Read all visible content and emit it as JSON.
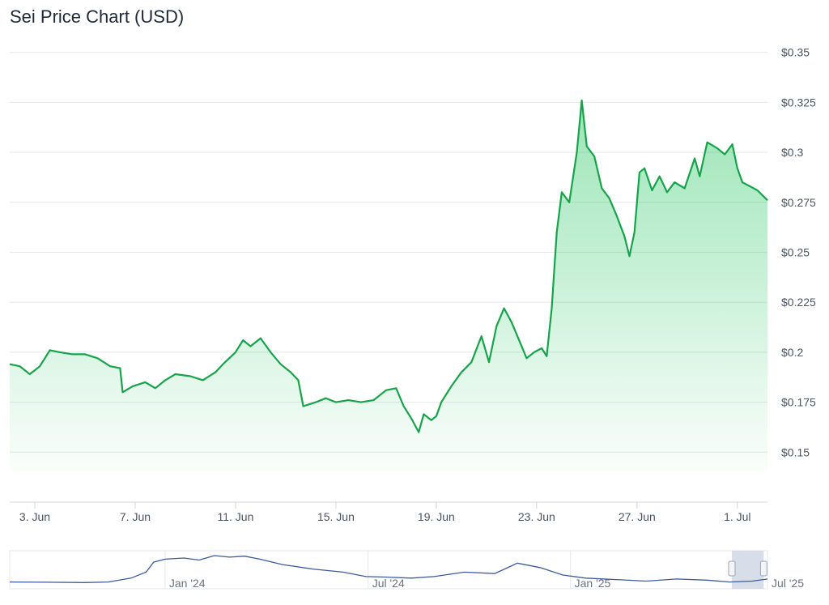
{
  "chart_title": "Sei Price Chart (USD)",
  "colors": {
    "line": "#16a34a",
    "fill_top": "#22c55e",
    "grid": "#e5e7eb",
    "navigator_line": "#3b5b9a",
    "navigator_mask": "#c8d0e0"
  },
  "chart_data": {
    "type": "area",
    "title": "Sei Price Chart (USD)",
    "currency": "USD",
    "xlabel": "",
    "ylabel": "",
    "y_axis_position": "right",
    "ylim": [
      0.125,
      0.36
    ],
    "grid": true,
    "y_ticks": [
      {
        "value": 0.15,
        "label": "$0.15"
      },
      {
        "value": 0.175,
        "label": "$0.175"
      },
      {
        "value": 0.2,
        "label": "$0.2"
      },
      {
        "value": 0.225,
        "label": "$0.225"
      },
      {
        "value": 0.25,
        "label": "$0.25"
      },
      {
        "value": 0.275,
        "label": "$0.275"
      },
      {
        "value": 0.3,
        "label": "$0.3"
      },
      {
        "value": 0.325,
        "label": "$0.325"
      },
      {
        "value": 0.35,
        "label": "$0.35"
      }
    ],
    "x_ticks": [
      {
        "day": 3,
        "label": "3. Jun"
      },
      {
        "day": 7,
        "label": "7. Jun"
      },
      {
        "day": 11,
        "label": "11. Jun"
      },
      {
        "day": 15,
        "label": "15. Jun"
      },
      {
        "day": 19,
        "label": "19. Jun"
      },
      {
        "day": 23,
        "label": "23. Jun"
      },
      {
        "day": 27,
        "label": "27. Jun"
      },
      {
        "day": 31,
        "label": "1. Jul"
      }
    ],
    "xlim": [
      2.0,
      32.2
    ],
    "series": [
      {
        "points": [
          [
            2.0,
            0.194
          ],
          [
            2.4,
            0.193
          ],
          [
            2.8,
            0.189
          ],
          [
            3.2,
            0.193
          ],
          [
            3.6,
            0.201
          ],
          [
            4.0,
            0.2
          ],
          [
            4.5,
            0.199
          ],
          [
            5.0,
            0.199
          ],
          [
            5.5,
            0.197
          ],
          [
            6.0,
            0.193
          ],
          [
            6.4,
            0.192
          ],
          [
            6.5,
            0.18
          ],
          [
            6.9,
            0.183
          ],
          [
            7.4,
            0.185
          ],
          [
            7.8,
            0.182
          ],
          [
            8.2,
            0.186
          ],
          [
            8.6,
            0.189
          ],
          [
            9.2,
            0.188
          ],
          [
            9.7,
            0.186
          ],
          [
            10.2,
            0.19
          ],
          [
            10.5,
            0.194
          ],
          [
            11.0,
            0.2
          ],
          [
            11.3,
            0.206
          ],
          [
            11.6,
            0.203
          ],
          [
            12.0,
            0.207
          ],
          [
            12.4,
            0.2
          ],
          [
            12.8,
            0.194
          ],
          [
            13.2,
            0.19
          ],
          [
            13.5,
            0.186
          ],
          [
            13.7,
            0.173
          ],
          [
            14.2,
            0.175
          ],
          [
            14.6,
            0.177
          ],
          [
            15.0,
            0.175
          ],
          [
            15.5,
            0.176
          ],
          [
            16.0,
            0.175
          ],
          [
            16.5,
            0.176
          ],
          [
            17.0,
            0.181
          ],
          [
            17.4,
            0.182
          ],
          [
            17.7,
            0.173
          ],
          [
            18.0,
            0.167
          ],
          [
            18.3,
            0.16
          ],
          [
            18.5,
            0.169
          ],
          [
            18.8,
            0.166
          ],
          [
            19.0,
            0.168
          ],
          [
            19.2,
            0.175
          ],
          [
            19.6,
            0.183
          ],
          [
            20.0,
            0.19
          ],
          [
            20.4,
            0.195
          ],
          [
            20.8,
            0.208
          ],
          [
            21.1,
            0.195
          ],
          [
            21.4,
            0.213
          ],
          [
            21.7,
            0.222
          ],
          [
            22.0,
            0.215
          ],
          [
            22.3,
            0.206
          ],
          [
            22.6,
            0.197
          ],
          [
            22.9,
            0.2
          ],
          [
            23.2,
            0.202
          ],
          [
            23.4,
            0.198
          ],
          [
            23.6,
            0.222
          ],
          [
            23.8,
            0.26
          ],
          [
            24.0,
            0.28
          ],
          [
            24.3,
            0.275
          ],
          [
            24.6,
            0.3
          ],
          [
            24.8,
            0.326
          ],
          [
            25.0,
            0.303
          ],
          [
            25.3,
            0.298
          ],
          [
            25.6,
            0.282
          ],
          [
            25.9,
            0.277
          ],
          [
            26.2,
            0.268
          ],
          [
            26.5,
            0.258
          ],
          [
            26.7,
            0.248
          ],
          [
            26.9,
            0.26
          ],
          [
            27.1,
            0.29
          ],
          [
            27.3,
            0.292
          ],
          [
            27.6,
            0.281
          ],
          [
            27.9,
            0.288
          ],
          [
            28.2,
            0.28
          ],
          [
            28.5,
            0.285
          ],
          [
            28.9,
            0.282
          ],
          [
            29.3,
            0.297
          ],
          [
            29.5,
            0.288
          ],
          [
            29.8,
            0.305
          ],
          [
            30.2,
            0.302
          ],
          [
            30.5,
            0.299
          ],
          [
            30.8,
            0.304
          ],
          [
            31.0,
            0.292
          ],
          [
            31.2,
            0.285
          ],
          [
            31.5,
            0.283
          ],
          [
            31.8,
            0.281
          ],
          [
            32.2,
            0.276
          ]
        ]
      }
    ]
  },
  "navigator": {
    "tick_labels": [
      "Jan '24",
      "Jul '24",
      "Jan '25",
      "Jul '25"
    ],
    "tick_fractions": [
      0.205,
      0.473,
      0.74,
      1.0
    ],
    "selection_range": [
      0.953,
      0.995
    ],
    "points": [
      [
        0.0,
        0.12
      ],
      [
        0.05,
        0.11
      ],
      [
        0.1,
        0.1
      ],
      [
        0.13,
        0.12
      ],
      [
        0.16,
        0.25
      ],
      [
        0.18,
        0.45
      ],
      [
        0.19,
        0.78
      ],
      [
        0.205,
        0.88
      ],
      [
        0.23,
        0.92
      ],
      [
        0.25,
        0.85
      ],
      [
        0.27,
        1.0
      ],
      [
        0.29,
        0.95
      ],
      [
        0.31,
        0.98
      ],
      [
        0.33,
        0.88
      ],
      [
        0.36,
        0.7
      ],
      [
        0.4,
        0.55
      ],
      [
        0.44,
        0.45
      ],
      [
        0.47,
        0.3
      ],
      [
        0.5,
        0.28
      ],
      [
        0.53,
        0.25
      ],
      [
        0.56,
        0.3
      ],
      [
        0.6,
        0.45
      ],
      [
        0.64,
        0.4
      ],
      [
        0.67,
        0.75
      ],
      [
        0.7,
        0.6
      ],
      [
        0.73,
        0.35
      ],
      [
        0.76,
        0.25
      ],
      [
        0.8,
        0.2
      ],
      [
        0.84,
        0.15
      ],
      [
        0.88,
        0.22
      ],
      [
        0.92,
        0.18
      ],
      [
        0.95,
        0.12
      ],
      [
        0.98,
        0.15
      ],
      [
        1.0,
        0.22
      ]
    ]
  }
}
